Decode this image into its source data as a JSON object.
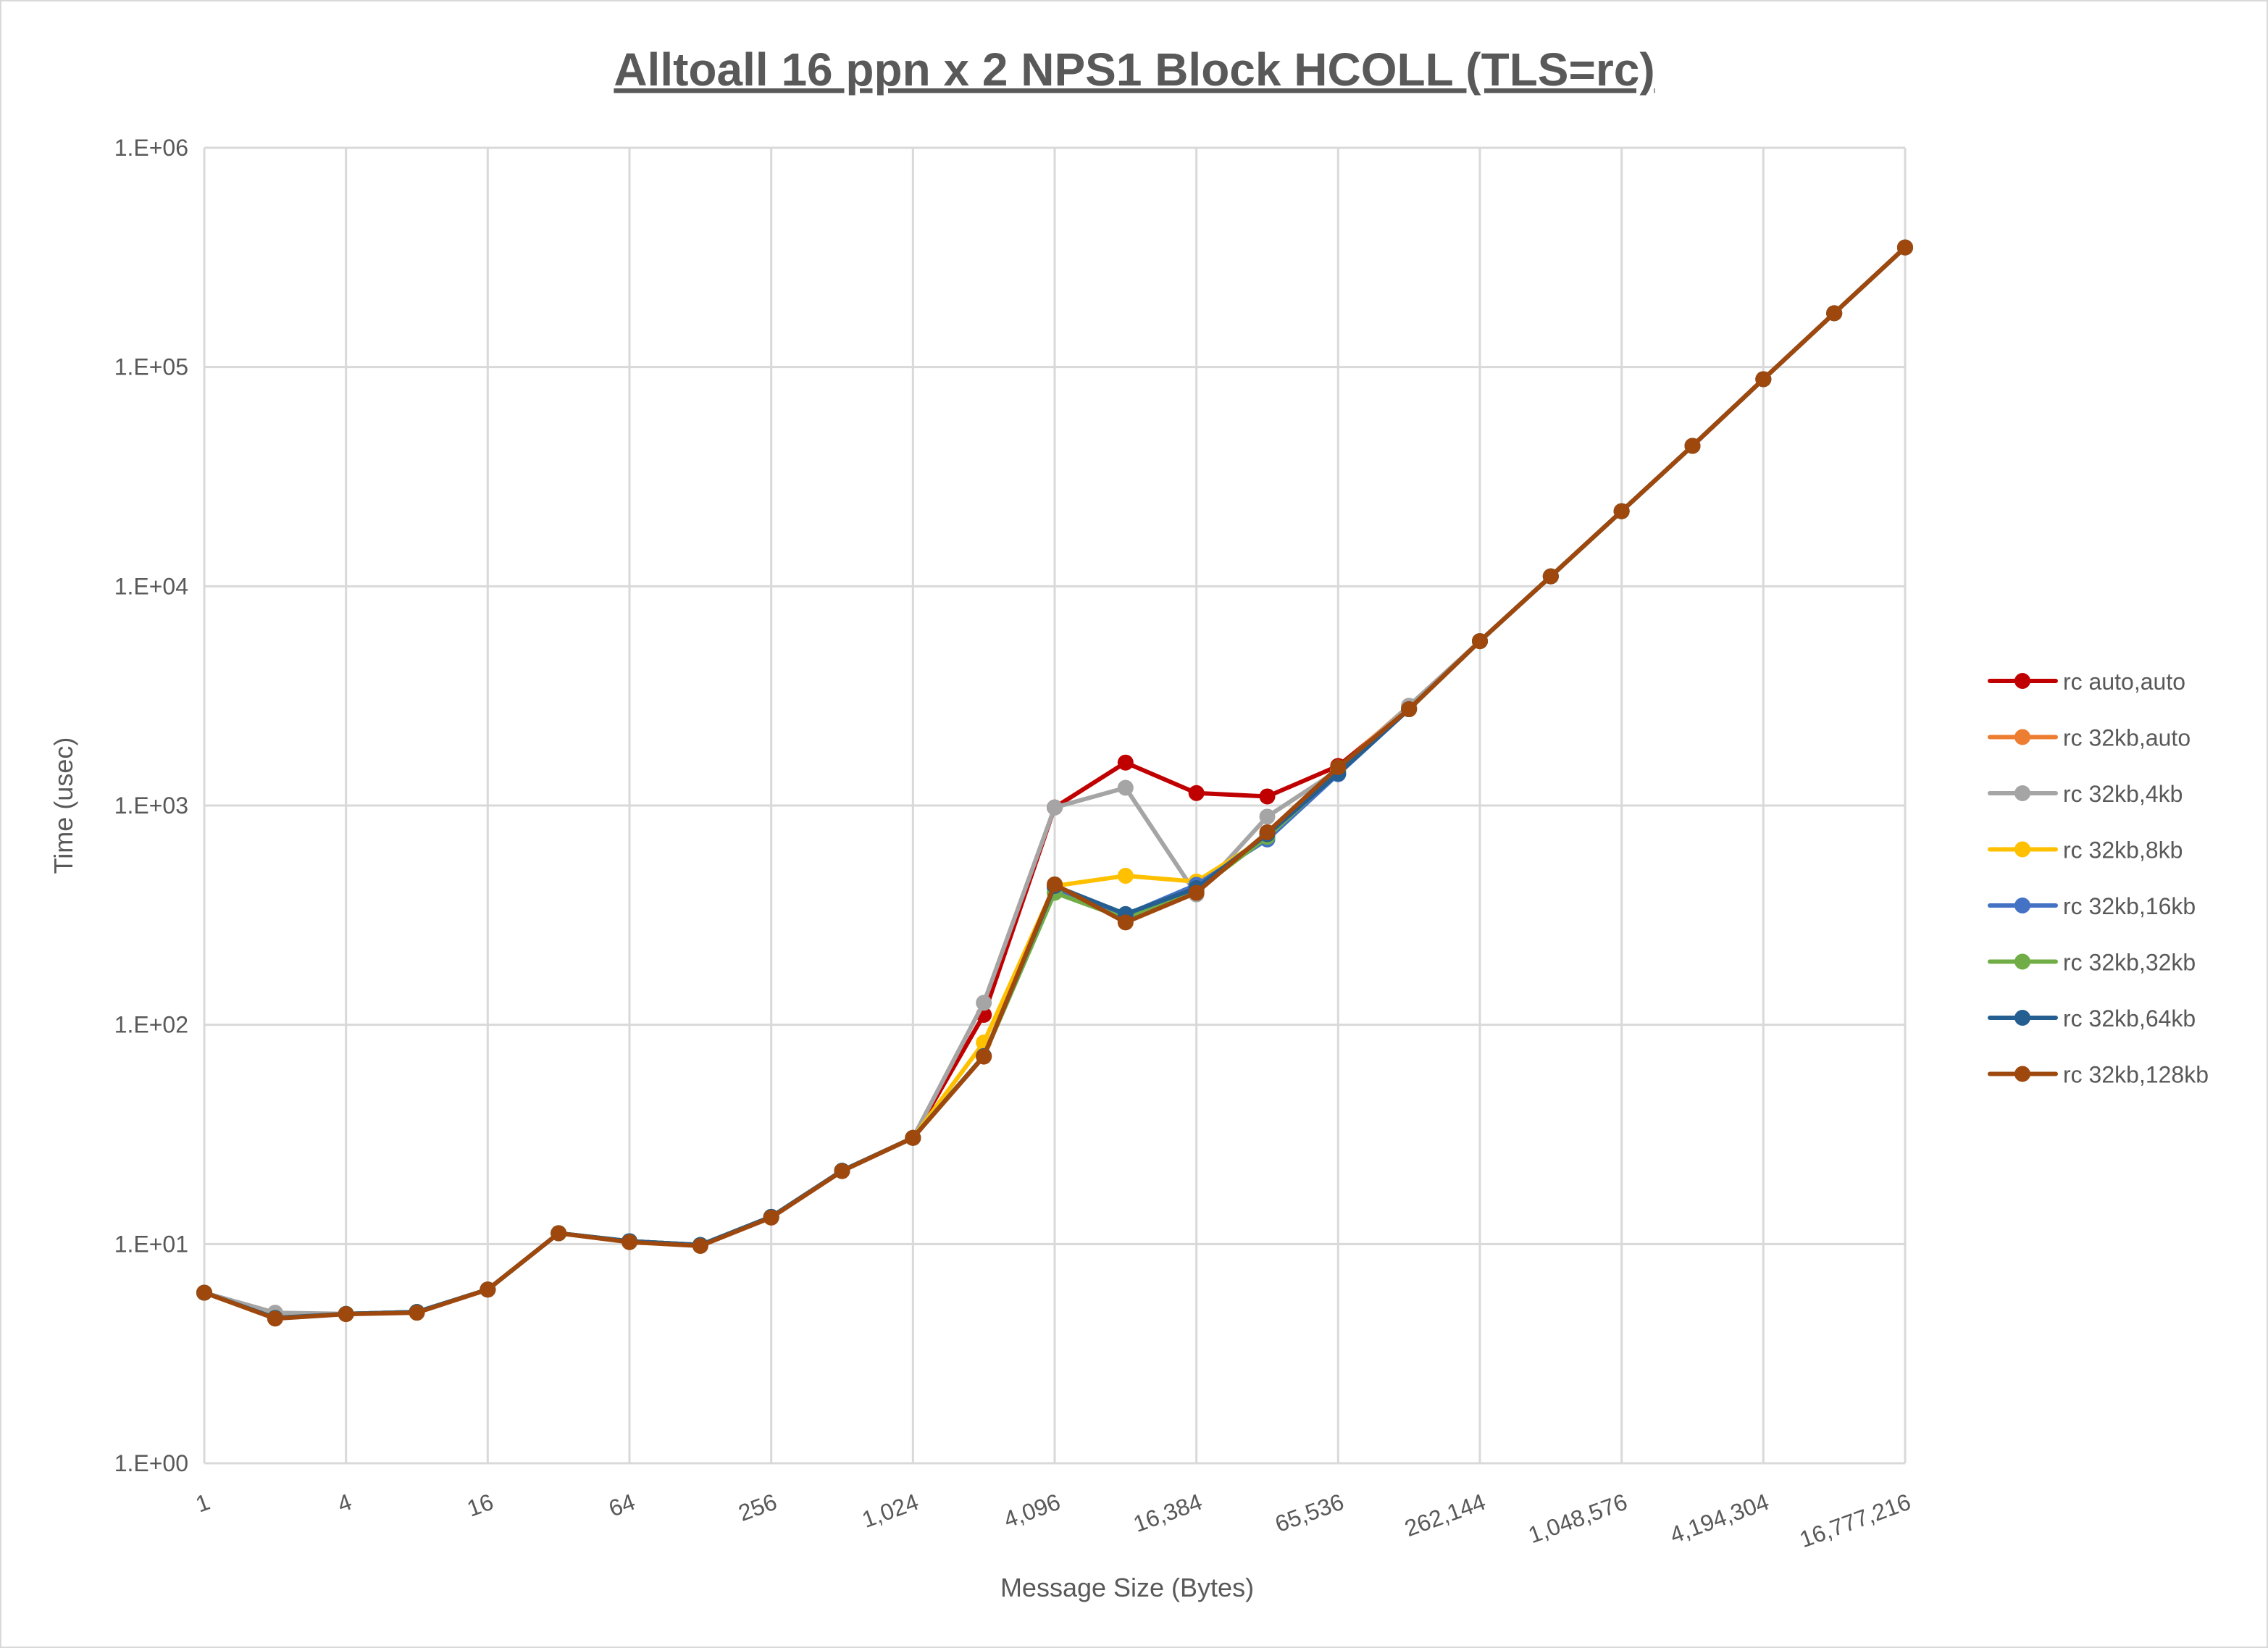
{
  "chart_data": {
    "type": "line",
    "title": "Alltoall 16 ppn x 2 NPS1 Block HCOLL (TLS=rc)",
    "xlabel": "Message Size (Bytes)",
    "ylabel": "Time (usec)",
    "x_scale": "log2",
    "y_scale": "log10",
    "ylim": [
      1,
      1000000
    ],
    "grid": true,
    "legend_position": "right",
    "x": [
      1,
      2,
      4,
      8,
      16,
      32,
      64,
      128,
      256,
      512,
      1024,
      2048,
      4096,
      8192,
      16384,
      32768,
      65536,
      131072,
      262144,
      524288,
      1048576,
      2097152,
      4194304,
      8388608,
      16777216
    ],
    "x_tick_labels": [
      "1",
      "4",
      "16",
      "64",
      "256",
      "1,024",
      "4,096",
      "16,384",
      "65,536",
      "262,144",
      "1,048,576",
      "4,194,304",
      "16,777,216"
    ],
    "y_tick_labels": [
      "1.E+00",
      "1.E+01",
      "1.E+02",
      "1.E+03",
      "1.E+04",
      "1.E+05",
      "1.E+06"
    ],
    "series": [
      {
        "name": "rc auto,auto",
        "color": "#C00000",
        "values": [
          6.0,
          4.7,
          4.8,
          4.9,
          6.2,
          11.2,
          10.3,
          9.9,
          13.3,
          21.6,
          30.5,
          111,
          980,
          1570,
          1140,
          1100,
          1515,
          2780,
          5620,
          11100,
          22000,
          43700,
          88000,
          176000,
          351000
        ]
      },
      {
        "name": "rc 32kb,auto",
        "color": "#ED7D31",
        "values": [
          6.0,
          4.7,
          4.8,
          4.9,
          6.2,
          11.2,
          10.3,
          9.9,
          13.3,
          21.6,
          30.5,
          72,
          430,
          300,
          410,
          750,
          1480,
          2850,
          5620,
          11100,
          22000,
          43700,
          88000,
          176000,
          351000
        ]
      },
      {
        "name": "rc 32kb,4kb",
        "color": "#A5A5A5",
        "values": [
          6.0,
          4.86,
          4.8,
          4.9,
          6.2,
          11.2,
          10.3,
          9.9,
          13.3,
          21.6,
          30.5,
          126,
          980,
          1205,
          393,
          890,
          1450,
          2850,
          5620,
          11100,
          22000,
          43700,
          88000,
          176000,
          351000
        ]
      },
      {
        "name": "rc 32kb,8kb",
        "color": "#FFC000",
        "values": [
          6.0,
          4.6,
          4.8,
          4.9,
          6.2,
          11.2,
          10.3,
          9.9,
          13.3,
          21.6,
          30.5,
          83,
          430,
          478,
          450,
          720,
          1450,
          2750,
          5620,
          11100,
          22000,
          43700,
          88000,
          176000,
          351000
        ]
      },
      {
        "name": "rc 32kb,16kb",
        "color": "#4472C4",
        "values": [
          6.0,
          4.6,
          4.8,
          4.9,
          6.2,
          11.2,
          10.3,
          9.9,
          13.3,
          21.6,
          30.5,
          72,
          420,
          317,
          435,
          700,
          1390,
          2750,
          5620,
          11100,
          22000,
          43700,
          88000,
          176000,
          351000
        ]
      },
      {
        "name": "rc 32kb,32kb",
        "color": "#70AD47",
        "values": [
          6.0,
          4.6,
          4.8,
          4.9,
          6.2,
          11.2,
          10.3,
          9.9,
          13.3,
          21.6,
          30.5,
          72,
          400,
          305,
          410,
          720,
          1420,
          2750,
          5620,
          11100,
          22000,
          43700,
          88000,
          176000,
          351000
        ]
      },
      {
        "name": "rc 32kb,64kb",
        "color": "#255E91",
        "values": [
          6.0,
          4.6,
          4.8,
          4.9,
          6.2,
          11.2,
          10.3,
          9.9,
          13.3,
          21.6,
          30.5,
          72,
          430,
          320,
          420,
          740,
          1400,
          2750,
          5620,
          11100,
          22000,
          43700,
          88000,
          176000,
          351000
        ]
      },
      {
        "name": "rc 32kb,128kb",
        "color": "#9E480E",
        "values": [
          6.0,
          4.57,
          4.79,
          4.86,
          6.2,
          11.2,
          10.2,
          9.8,
          13.2,
          21.5,
          30.5,
          71.6,
          437,
          293,
          400,
          755,
          1496,
          2750,
          5620,
          11100,
          22000,
          43700,
          88000,
          176000,
          351000
        ]
      }
    ]
  }
}
